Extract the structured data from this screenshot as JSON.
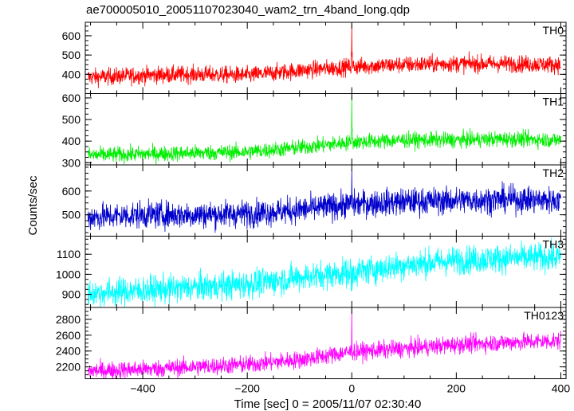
{
  "title": "ae700005010_20051107023040_wam2_trn_4band_long.qdp",
  "xlabel": "Time [sec] 0 = 2005/11/07 02:30:40",
  "ylabel": "Counts/sec",
  "chart_data": {
    "type": "line",
    "title": "ae700005010_20051107023040_wam2_trn_4band_long.qdp",
    "xlabel": "Time [sec] 0 = 2005/11/07 02:30:40",
    "ylabel": "Counts/sec",
    "xlim": [
      -510,
      410
    ],
    "xticks": [
      -400,
      -200,
      0,
      200,
      400
    ],
    "xtick_labels": [
      "−400",
      "−200",
      "0",
      "200",
      "400"
    ],
    "grid": false,
    "spike_time": 0,
    "panels": [
      {
        "name": "TH0",
        "color": "#ff0000",
        "ylim": [
          300,
          670
        ],
        "yticks": [
          400,
          500,
          600
        ],
        "x": [
          -500,
          -400,
          -300,
          -200,
          -100,
          0,
          100,
          200,
          300,
          400
        ],
        "values": [
          385,
          395,
          400,
          395,
          420,
          440,
          450,
          455,
          455,
          450
        ],
        "noise": 22,
        "spike_peak": 665
      },
      {
        "name": "TH1",
        "color": "#00ee00",
        "ylim": [
          290,
          620
        ],
        "yticks": [
          300,
          400,
          500,
          600
        ],
        "x": [
          -500,
          -400,
          -300,
          -200,
          -100,
          0,
          100,
          200,
          300,
          400
        ],
        "values": [
          335,
          340,
          345,
          350,
          370,
          395,
          405,
          405,
          410,
          405
        ],
        "noise": 18,
        "spike_peak": 610
      },
      {
        "name": "TH2",
        "color": "#0000cc",
        "ylim": [
          410,
          710
        ],
        "yticks": [
          500,
          600
        ],
        "x": [
          -500,
          -400,
          -300,
          -200,
          -100,
          0,
          100,
          200,
          300,
          400
        ],
        "values": [
          490,
          500,
          500,
          505,
          520,
          545,
          555,
          560,
          565,
          560
        ],
        "noise": 28,
        "spike_peak": 690
      },
      {
        "name": "TH3",
        "color": "#00ffff",
        "ylim": [
          835,
          1190
        ],
        "yticks": [
          900,
          1000,
          1100
        ],
        "x": [
          -500,
          -400,
          -300,
          -200,
          -100,
          0,
          100,
          200,
          300,
          400
        ],
        "values": [
          905,
          920,
          935,
          950,
          985,
          1010,
          1045,
          1070,
          1080,
          1085
        ],
        "noise": 35,
        "spike_peak": 1040
      },
      {
        "name": "TH0123",
        "color": "#ff00ff",
        "ylim": [
          2050,
          2950
        ],
        "yticks": [
          2200,
          2400,
          2600,
          2800
        ],
        "x": [
          -500,
          -400,
          -300,
          -200,
          -100,
          0,
          100,
          200,
          300,
          400
        ],
        "values": [
          2150,
          2170,
          2200,
          2230,
          2290,
          2390,
          2430,
          2480,
          2510,
          2530
        ],
        "noise": 55,
        "spike_peak": 2950
      }
    ]
  }
}
